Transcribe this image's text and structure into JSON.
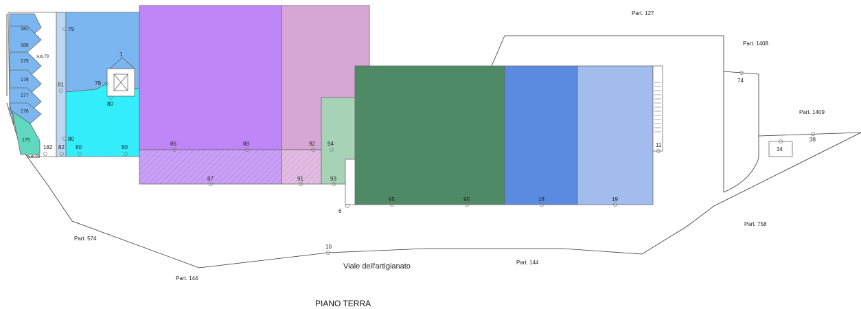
{
  "title": "PIANO TERRA",
  "street": "Viale dell'artigianato",
  "parcels": {
    "p127": "Part. 127",
    "p1408": "Part. 1408",
    "p1409": "Part. 1409",
    "p758": "Part. 758",
    "p574": "Part. 574",
    "p144_left": "Part. 144",
    "p144_right": "Part. 144"
  },
  "subalterns": {
    "s181": "181",
    "s180": "180",
    "s179": "179",
    "s178": "178",
    "s177": "177",
    "s176": "176",
    "s175": "175",
    "sub79": "sub.79",
    "sub28": "sub.28",
    "s182": "182",
    "s82": "82",
    "s80a": "80",
    "s80b": "80",
    "s80c": "80",
    "s80d": "80",
    "s79a": "79",
    "s79b": "79",
    "s81": "81",
    "s1": "1",
    "s86": "86",
    "s88": "88",
    "s87": "87",
    "s92": "92",
    "s94": "94",
    "s91": "91",
    "s93": "93",
    "s95a": "95",
    "s95b": "95",
    "s18": "18",
    "s19": "19",
    "s11": "11",
    "s6": "6",
    "s10": "10",
    "s74": "74",
    "s34": "34",
    "s38": "38"
  },
  "colors": {
    "garage": "#7bb6f0",
    "cyan": "#33eefa",
    "teal": "#5fd8bf",
    "violet": "#bf86f8",
    "orchid": "#d6a6d4",
    "sage": "#a6d2b6",
    "forest": "#4f8a66",
    "royal": "#5b8be0",
    "periwinkle": "#a3bcee"
  }
}
